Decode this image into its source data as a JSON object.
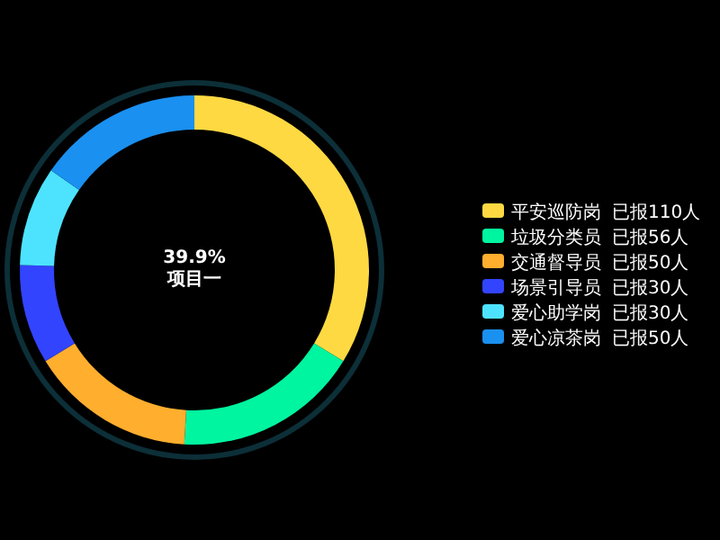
{
  "chart_data": {
    "type": "donut",
    "categories": [
      "平安巡防岗",
      "垃圾分类员",
      "交通督导员",
      "场景引导员",
      "爱心助学岗",
      "爱心凉茶岗"
    ],
    "values": [
      110,
      56,
      50,
      30,
      30,
      50
    ],
    "value_labels": [
      "已报110人",
      "已报56人",
      "已报50人",
      "已报30人",
      "已报30人",
      "已报50人"
    ],
    "colors": [
      "#ffd942",
      "#00f5a0",
      "#ffae2e",
      "#3344ff",
      "#4de3ff",
      "#1a90f0"
    ],
    "annotations": [
      "39.9%",
      "项目一"
    ],
    "legend": "right"
  }
}
